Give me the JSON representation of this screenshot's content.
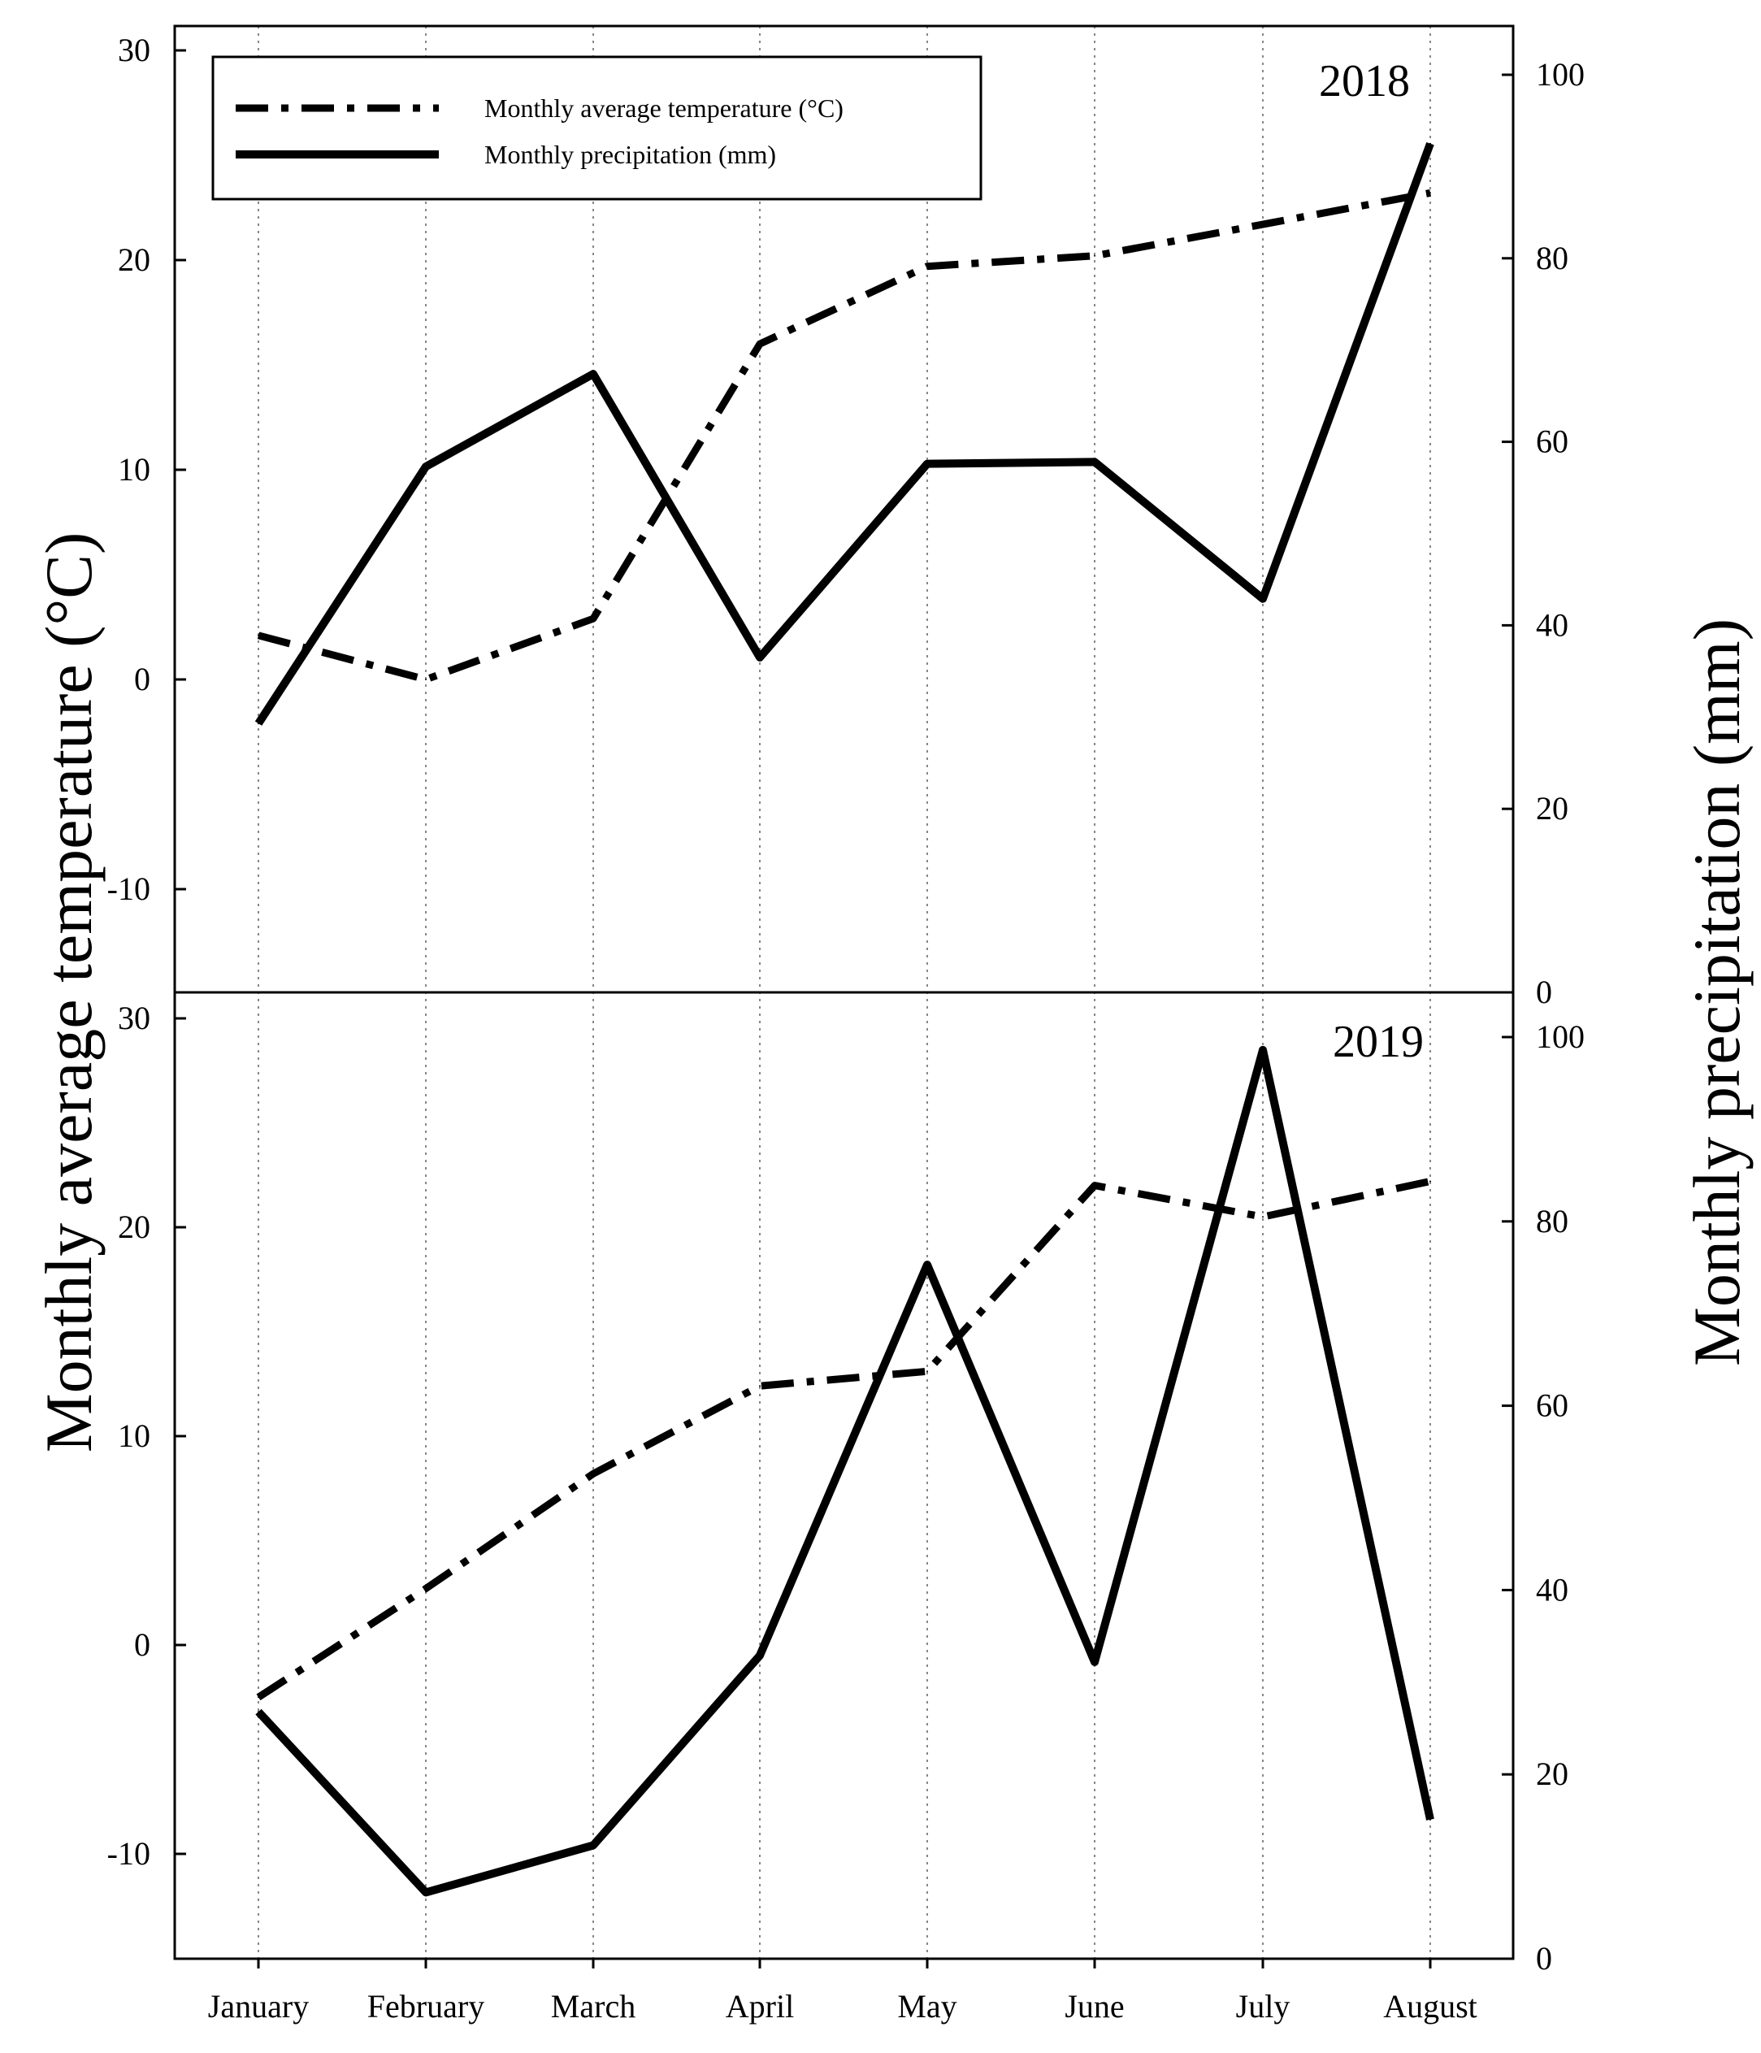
{
  "chart_data": {
    "type": "line",
    "categories": [
      "January",
      "February",
      "March",
      "April",
      "May",
      "June",
      "July",
      "August"
    ],
    "y_left": {
      "label": "Monthly average temperature (°C)",
      "ylim": [
        -15,
        31
      ],
      "ticks": [
        -10,
        0,
        10,
        20,
        30
      ]
    },
    "y_right": {
      "label": "Monthly precipitation (mm)",
      "ylim": [
        0,
        104
      ],
      "ticks": [
        0,
        20,
        40,
        60,
        80,
        100
      ],
      "tick_labels_2018": [
        "20",
        "40",
        "60",
        "80",
        "100"
      ],
      "tick_labels_2019": [
        "0",
        "20",
        "40",
        "60",
        "80",
        "100"
      ]
    },
    "legend": {
      "position": "top-left",
      "entries": [
        {
          "label": "Monthly average temperature (°C)",
          "style": "dash-dot"
        },
        {
          "label": "Monthly precipitation (mm)",
          "style": "solid"
        }
      ]
    },
    "panels": [
      {
        "year": "2018",
        "series": [
          {
            "name": "Monthly average temperature (°C)",
            "axis": "left",
            "style": "dash-dot",
            "values": [
              2.1,
              0.0,
              2.9,
              16.0,
              19.7,
              20.2,
              21.7,
              23.2
            ]
          },
          {
            "name": "Monthly precipitation (mm)",
            "axis": "right",
            "style": "solid",
            "values": [
              29.3,
              57.3,
              67.4,
              36.5,
              57.6,
              57.8,
              42.9,
              92.5
            ]
          }
        ]
      },
      {
        "year": "2019",
        "series": [
          {
            "name": "Monthly average temperature (°C)",
            "axis": "left",
            "style": "dash-dot",
            "values": [
              -2.5,
              2.7,
              8.2,
              12.4,
              13.1,
              22.0,
              20.5,
              22.2
            ]
          },
          {
            "name": "Monthly precipitation (mm)",
            "axis": "right",
            "style": "solid",
            "values": [
              26.8,
              7.2,
              12.3,
              32.9,
              75.3,
              32.2,
              98.6,
              15.1
            ]
          }
        ]
      }
    ]
  }
}
